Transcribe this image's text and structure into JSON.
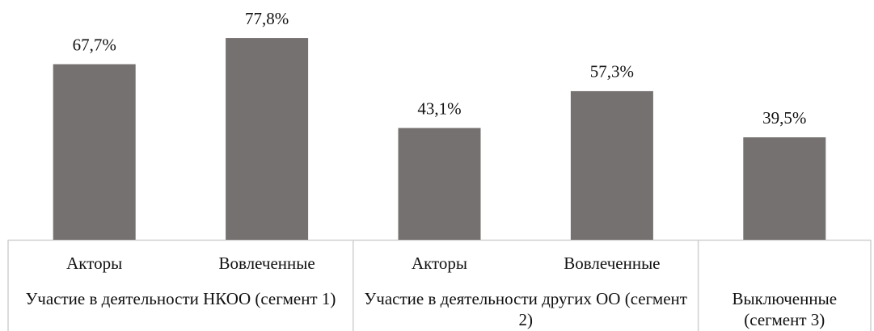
{
  "chart_data": {
    "type": "bar",
    "color": "#767171",
    "ylim": [
      0,
      80
    ],
    "groups": [
      {
        "label": "Участие в деятельности НКОО (сегмент 1)",
        "categories": [
          "Акторы",
          "Вовлеченные"
        ],
        "values": [
          67.7,
          77.8
        ],
        "value_labels": [
          "67,7%",
          "77,8%"
        ]
      },
      {
        "label": "Участие в деятельности других ОО (сегмент 2)",
        "categories": [
          "Акторы",
          "Вовлеченные"
        ],
        "values": [
          43.1,
          57.3
        ],
        "value_labels": [
          "43,1%",
          "57,3%"
        ]
      },
      {
        "label": "Выключенные (сегмент 3)",
        "categories": [
          null
        ],
        "values": [
          39.5
        ],
        "value_labels": [
          "39,5%"
        ]
      }
    ]
  }
}
